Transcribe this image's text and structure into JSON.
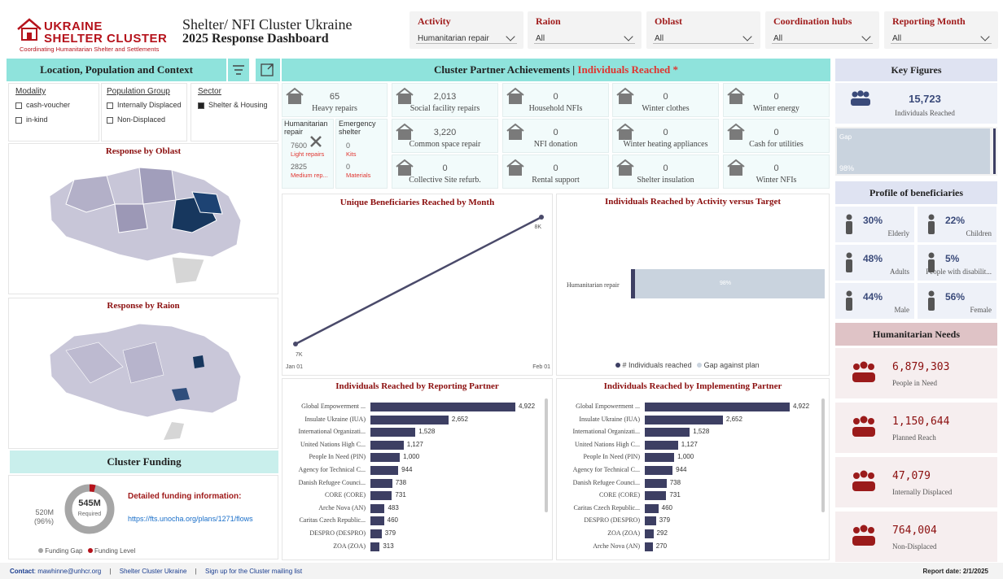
{
  "header": {
    "logo_line1": "UKRAINE",
    "logo_line2": "SHELTER CLUSTER",
    "logo_tagline": "Coordinating Humanitarian Shelter and Settlements",
    "title_line1": "Shelter/ NFI Cluster Ukraine",
    "title_line2": "2025 Response Dashboard"
  },
  "filters": [
    {
      "label": "Activity",
      "value": "Humanitarian repair"
    },
    {
      "label": "Raion",
      "value": "All"
    },
    {
      "label": "Oblast",
      "value": "All"
    },
    {
      "label": "Coordination hubs",
      "value": "All"
    },
    {
      "label": "Reporting Month",
      "value": "All"
    }
  ],
  "left": {
    "location_title": "Location, Population and Context",
    "modality_title": "Modality",
    "modality_items": [
      "cash-voucher",
      "in-kind"
    ],
    "popgroup_title": "Population Group",
    "popgroup_items": [
      "Internally Displaced",
      "Non-Displaced"
    ],
    "sector_title": "Sector",
    "sector_items": [
      "Shelter & Housing"
    ],
    "oblast_map_title": "Response by Oblast",
    "raion_map_title": "Response by Raion",
    "funding_title": "Cluster Funding",
    "funding_center_value": "545M",
    "funding_center_label": "Required",
    "funding_gap_value": "520M",
    "funding_gap_pct": "(96%)",
    "funding_info_title": "Detailed funding information:",
    "funding_link": "https://fts.unocha.org/plans/1271/flows",
    "legend_gap": "Funding Gap",
    "legend_level": "Funding Level",
    "funding_gap_fraction": 0.96
  },
  "achievements": {
    "title_prefix": "Cluster Partner Achievements | ",
    "title_highlight": "Individuals Reached *",
    "cards": [
      {
        "value": "65",
        "label": "Heavy repairs"
      },
      {
        "value": "2,013",
        "label": "Social facility repairs"
      },
      {
        "value": "0",
        "label": "Household NFIs"
      },
      {
        "value": "0",
        "label": "Winter clothes"
      },
      {
        "value": "0",
        "label": "Winter energy"
      },
      {
        "value": "3,220",
        "label": "Common space repair"
      },
      {
        "value": "0",
        "label": "NFI donation"
      },
      {
        "value": "0",
        "label": "Winter heating appliances"
      },
      {
        "value": "0",
        "label": "Cash for utilities"
      },
      {
        "value": "0",
        "label": "Collective Site refurb."
      },
      {
        "value": "0",
        "label": "Rental support"
      },
      {
        "value": "0",
        "label": "Shelter insulation"
      },
      {
        "value": "0",
        "label": "Winter NFIs"
      }
    ],
    "hum_repair_title": "Humanitarian repair",
    "hum_light_value": "7600",
    "hum_light_label": "Light repairs",
    "hum_medium_value": "2825",
    "hum_medium_label": "Medium rep...",
    "emergency_title": "Emergency shelter",
    "em_kits_value": "0",
    "em_kits_label": "Kits",
    "em_mat_value": "0",
    "em_mat_label": "Materials"
  },
  "chart_data": [
    {
      "type": "line",
      "title": "Unique Beneficiaries Reached by Month",
      "x": [
        "Jan 01",
        "Feb 01"
      ],
      "values": [
        7000,
        8000
      ],
      "data_labels": [
        "7K",
        "8K"
      ]
    },
    {
      "type": "bar",
      "title": "Individuals Reached by Activity versus Target",
      "categories": [
        "Humanitarian repair"
      ],
      "series": [
        {
          "name": "# Individuals reached",
          "values": [
            2
          ]
        },
        {
          "name": "Gap against plan",
          "values": [
            98
          ]
        }
      ],
      "data_label": "98%",
      "legend": [
        "# Individuals reached",
        "Gap against plan"
      ]
    },
    {
      "type": "bar",
      "title": "Individuals Reached by Reporting Partner",
      "categories": [
        "Global Empowerment ...",
        "Insulate Ukraine (IUA)",
        "International Organizati...",
        "United Nations High C...",
        "People In Need (PIN)",
        "Agency for Technical C...",
        "Danish Refugee Counci...",
        "CORE (CORE)",
        "Arche Nova (AN)",
        "Caritas Czech Republic...",
        "DESPRO (DESPRO)",
        "ZOA (ZOA)"
      ],
      "values": [
        4922,
        2652,
        1528,
        1127,
        1000,
        944,
        738,
        731,
        483,
        460,
        379,
        313
      ],
      "labels": [
        "4,922",
        "2,652",
        "1,528",
        "1,127",
        "1,000",
        "944",
        "738",
        "731",
        "483",
        "460",
        "379",
        "313"
      ]
    },
    {
      "type": "bar",
      "title": "Individuals Reached by Implementing Partner",
      "categories": [
        "Global Empowerment ...",
        "Insulate Ukraine (IUA)",
        "International Organizati...",
        "United Nations High C...",
        "People In Need (PIN)",
        "Agency for Technical C...",
        "Danish Refugee Counci...",
        "CORE (CORE)",
        "Caritas Czech Republic...",
        "DESPRO (DESPRO)",
        "ZOA (ZOA)",
        "Arche Nova (AN)"
      ],
      "values": [
        4922,
        2652,
        1528,
        1127,
        1000,
        944,
        738,
        731,
        460,
        379,
        292,
        270
      ],
      "labels": [
        "4,922",
        "2,652",
        "1,528",
        "1,127",
        "1,000",
        "944",
        "738",
        "731",
        "460",
        "379",
        "292",
        "270"
      ]
    }
  ],
  "key_figures": {
    "title": "Key Figures",
    "individuals_value": "15,723",
    "individuals_label": "Individuals Reached",
    "gap_label": "Gap",
    "gap_pct": "98%",
    "gap_fraction": 0.98,
    "profile_title": "Profile of beneficiaries",
    "profile": [
      {
        "value": "30%",
        "label": "Elderly"
      },
      {
        "value": "22%",
        "label": "Children"
      },
      {
        "value": "48%",
        "label": "Adults"
      },
      {
        "value": "5%",
        "label": "People with disabilit..."
      },
      {
        "value": "44%",
        "label": "Male"
      },
      {
        "value": "56%",
        "label": "Female"
      }
    ],
    "needs_title": "Humanitarian Needs",
    "needs": [
      {
        "value": "6,879,303",
        "label": "People in Need"
      },
      {
        "value": "1,150,644",
        "label": "Planned Reach"
      },
      {
        "value": "47,079",
        "label": "Internally Displaced"
      },
      {
        "value": "764,004",
        "label": "Non-Displaced"
      }
    ]
  },
  "footer": {
    "contact_label": "Contact",
    "contact_email": "mawhinne@unhcr.org",
    "sep": "|",
    "link1": "Shelter Cluster Ukraine",
    "link2": "Sign up for the Cluster mailing list",
    "report_date": "Report date: 2/1/2025"
  },
  "colors": {
    "accent_teal": "#8fe3dc",
    "brand_red": "#b5121b",
    "bar_navy": "#3d3f63",
    "map_dark": "#17375e"
  }
}
